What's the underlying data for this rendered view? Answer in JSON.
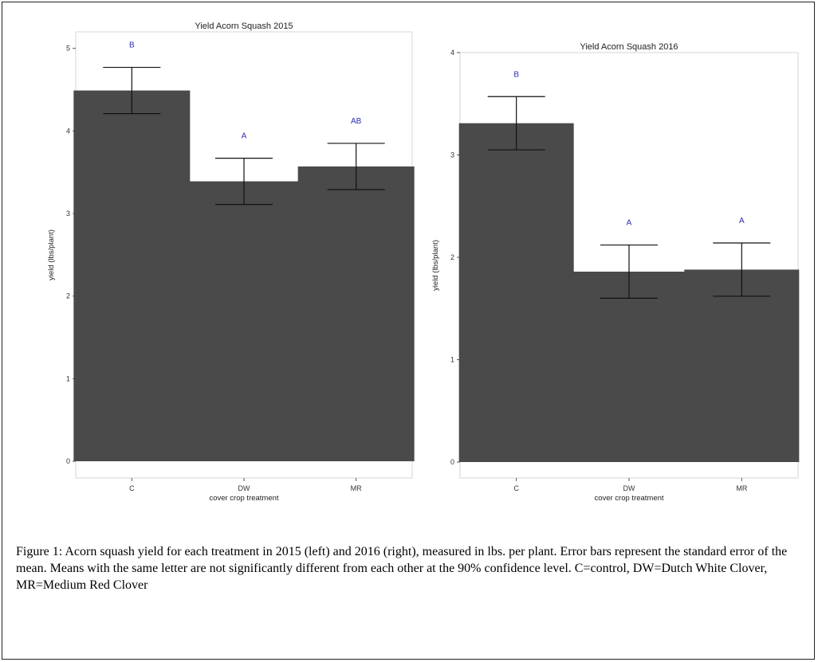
{
  "chart_data": [
    {
      "type": "bar",
      "title": "Yield Acorn Squash 2015",
      "xlabel": "cover crop treatment",
      "ylabel": "yield (lbs/plant)",
      "categories": [
        "C",
        "DW",
        "MR"
      ],
      "values": [
        4.49,
        3.39,
        3.57
      ],
      "error_low": [
        4.21,
        3.11,
        3.29
      ],
      "error_high": [
        4.77,
        3.67,
        3.85
      ],
      "significance_letters": [
        "B",
        "A",
        "AB"
      ],
      "ylim": [
        0,
        5.2
      ],
      "yticks": [
        "0",
        "1",
        "2",
        "3",
        "4",
        "5"
      ],
      "grid": false,
      "bar_color": "#4a4a4a",
      "letter_color": "#2b2bb8"
    },
    {
      "type": "bar",
      "title": "Yield Acorn Squash 2016",
      "xlabel": "cover crop treatment",
      "ylabel": "yield (lbs/plant)",
      "categories": [
        "C",
        "DW",
        "MR"
      ],
      "values": [
        3.31,
        1.86,
        1.88
      ],
      "error_low": [
        3.05,
        1.6,
        1.62
      ],
      "error_high": [
        3.57,
        2.12,
        2.14
      ],
      "significance_letters": [
        "B",
        "A",
        "A"
      ],
      "ylim": [
        0,
        4.0
      ],
      "yticks": [
        "0",
        "1",
        "2",
        "3",
        "4"
      ],
      "grid": false,
      "bar_color": "#4a4a4a",
      "letter_color": "#2b2bb8"
    }
  ],
  "caption": "Figure 1:  Acorn squash yield for each treatment in 2015 (left) and 2016 (right), measured in lbs. per plant.  Error bars represent the standard error of the mean.  Means with the same letter are not significantly different from each other at the 90% confidence level.  C=control, DW=Dutch White Clover, MR=Medium Red Clover"
}
